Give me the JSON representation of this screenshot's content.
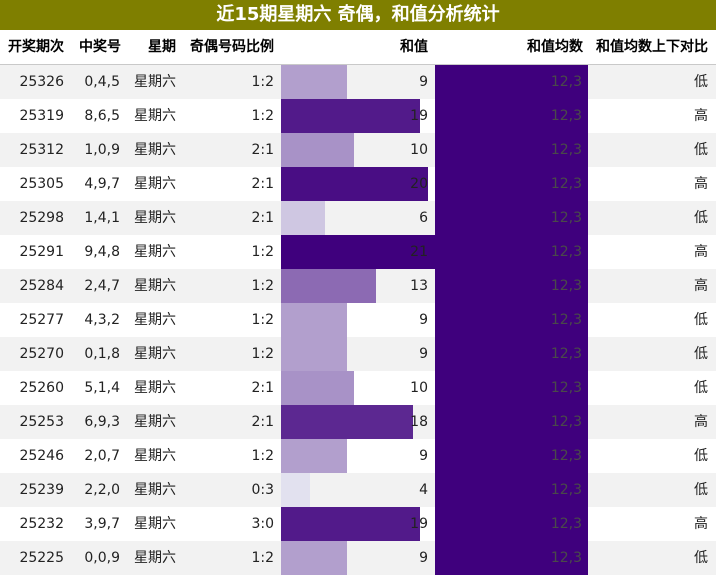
{
  "title": "近15期星期六 奇偶，和值分析统计",
  "columns": [
    "开奖期次",
    "中奖号",
    "星期",
    "奇偶号码比例",
    "和值",
    "和值均数",
    "和值均数上下对比"
  ],
  "colors": {
    "title_bg": "#7f7f00",
    "avg_fill": "#3f007d",
    "bar_scale": [
      "#e2e1ef",
      "#3f007d"
    ]
  },
  "chart_data": {
    "type": "table",
    "sum_range": [
      4,
      21
    ],
    "rows": [
      {
        "issue": "25326",
        "numbers": "0,4,5",
        "weekday": "星期六",
        "ratio": "1:2",
        "sum": 9,
        "avg": "12,3",
        "cmp": "低"
      },
      {
        "issue": "25319",
        "numbers": "8,6,5",
        "weekday": "星期六",
        "ratio": "1:2",
        "sum": 19,
        "avg": "12,3",
        "cmp": "高"
      },
      {
        "issue": "25312",
        "numbers": "1,0,9",
        "weekday": "星期六",
        "ratio": "2:1",
        "sum": 10,
        "avg": "12,3",
        "cmp": "低"
      },
      {
        "issue": "25305",
        "numbers": "4,9,7",
        "weekday": "星期六",
        "ratio": "2:1",
        "sum": 20,
        "avg": "12,3",
        "cmp": "高"
      },
      {
        "issue": "25298",
        "numbers": "1,4,1",
        "weekday": "星期六",
        "ratio": "2:1",
        "sum": 6,
        "avg": "12,3",
        "cmp": "低"
      },
      {
        "issue": "25291",
        "numbers": "9,4,8",
        "weekday": "星期六",
        "ratio": "1:2",
        "sum": 21,
        "avg": "12,3",
        "cmp": "高"
      },
      {
        "issue": "25284",
        "numbers": "2,4,7",
        "weekday": "星期六",
        "ratio": "1:2",
        "sum": 13,
        "avg": "12,3",
        "cmp": "高"
      },
      {
        "issue": "25277",
        "numbers": "4,3,2",
        "weekday": "星期六",
        "ratio": "1:2",
        "sum": 9,
        "avg": "12,3",
        "cmp": "低"
      },
      {
        "issue": "25270",
        "numbers": "0,1,8",
        "weekday": "星期六",
        "ratio": "1:2",
        "sum": 9,
        "avg": "12,3",
        "cmp": "低"
      },
      {
        "issue": "25260",
        "numbers": "5,1,4",
        "weekday": "星期六",
        "ratio": "2:1",
        "sum": 10,
        "avg": "12,3",
        "cmp": "低"
      },
      {
        "issue": "25253",
        "numbers": "6,9,3",
        "weekday": "星期六",
        "ratio": "2:1",
        "sum": 18,
        "avg": "12,3",
        "cmp": "高"
      },
      {
        "issue": "25246",
        "numbers": "2,0,7",
        "weekday": "星期六",
        "ratio": "1:2",
        "sum": 9,
        "avg": "12,3",
        "cmp": "低"
      },
      {
        "issue": "25239",
        "numbers": "2,2,0",
        "weekday": "星期六",
        "ratio": "0:3",
        "sum": 4,
        "avg": "12,3",
        "cmp": "低"
      },
      {
        "issue": "25232",
        "numbers": "3,9,7",
        "weekday": "星期六",
        "ratio": "3:0",
        "sum": 19,
        "avg": "12,3",
        "cmp": "高"
      },
      {
        "issue": "25225",
        "numbers": "0,0,9",
        "weekday": "星期六",
        "ratio": "1:2",
        "sum": 9,
        "avg": "12,3",
        "cmp": "低"
      }
    ]
  }
}
